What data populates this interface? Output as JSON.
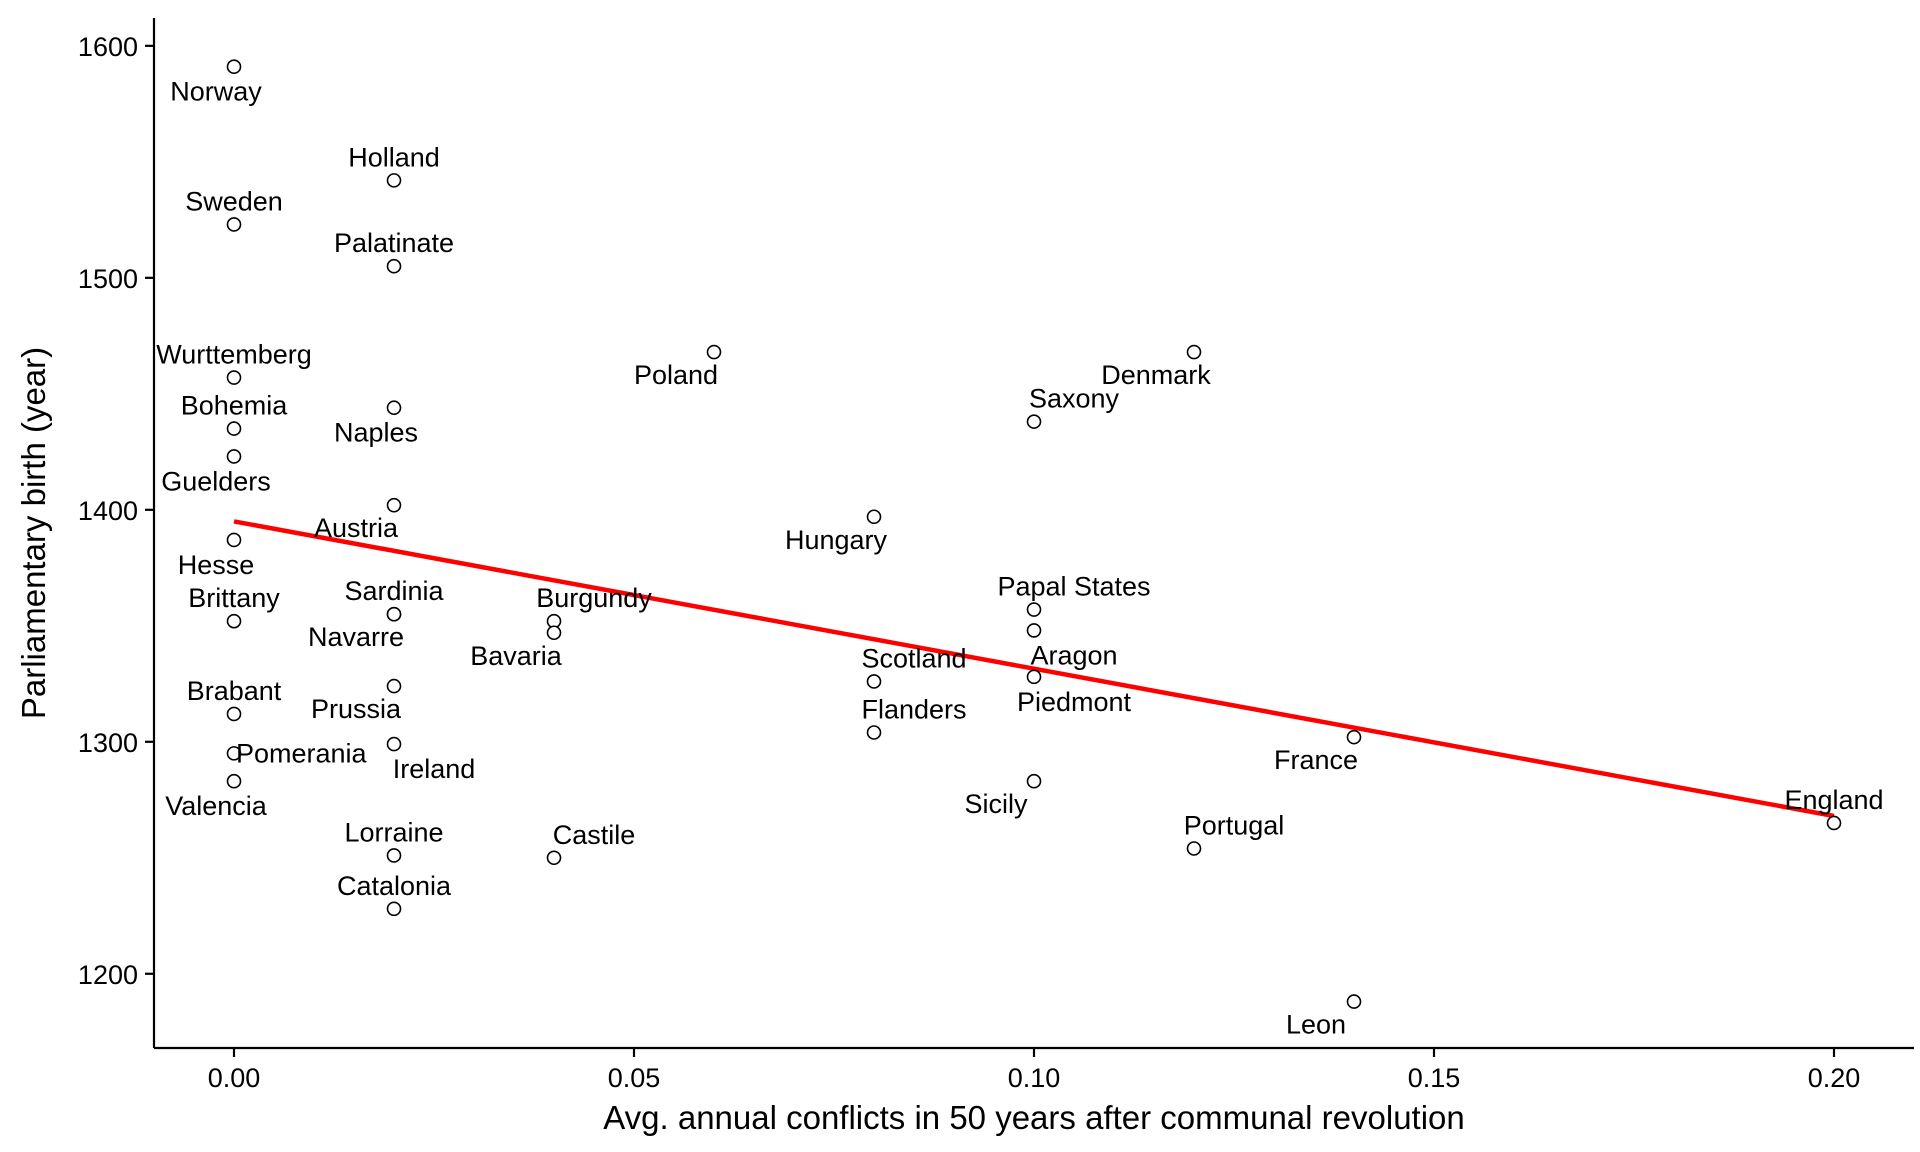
{
  "chart_data": {
    "type": "scatter",
    "title": "",
    "xlabel": "Avg. annual conflicts in 50 years after communal revolution",
    "ylabel": "Parliamentary birth (year)",
    "xlim": [
      -0.01,
      0.21
    ],
    "ylim": [
      1168,
      1612
    ],
    "xticks": [
      0.0,
      0.05,
      0.1,
      0.15,
      0.2
    ],
    "xtick_labels": [
      "0.00",
      "0.05",
      "0.10",
      "0.15",
      "0.20"
    ],
    "yticks": [
      1200,
      1300,
      1400,
      1500,
      1600
    ],
    "ytick_labels": [
      "1200",
      "1300",
      "1400",
      "1500",
      "1600"
    ],
    "grid": false,
    "points": [
      {
        "label": "Norway",
        "x": 0.0,
        "y": 1591,
        "pos": "below"
      },
      {
        "label": "Sweden",
        "x": 0.0,
        "y": 1523,
        "pos": "above"
      },
      {
        "label": "Wurttemberg",
        "x": 0.0,
        "y": 1457,
        "pos": "above"
      },
      {
        "label": "Bohemia",
        "x": 0.0,
        "y": 1435,
        "pos": "above"
      },
      {
        "label": "Guelders",
        "x": 0.0,
        "y": 1423,
        "pos": "below"
      },
      {
        "label": "Hesse",
        "x": 0.0,
        "y": 1387,
        "pos": "below"
      },
      {
        "label": "Brittany",
        "x": 0.0,
        "y": 1352,
        "pos": "above"
      },
      {
        "label": "Brabant",
        "x": 0.0,
        "y": 1312,
        "pos": "above"
      },
      {
        "label": "Pomerania",
        "x": 0.0,
        "y": 1295,
        "pos": "right"
      },
      {
        "label": "Valencia",
        "x": 0.0,
        "y": 1283,
        "pos": "below"
      },
      {
        "label": "Holland",
        "x": 0.02,
        "y": 1542,
        "pos": "above"
      },
      {
        "label": "Palatinate",
        "x": 0.02,
        "y": 1505,
        "pos": "above"
      },
      {
        "label": "Naples",
        "x": 0.02,
        "y": 1444,
        "pos": "below"
      },
      {
        "label": "Austria",
        "x": 0.02,
        "y": 1402,
        "pos": "belowleft"
      },
      {
        "label": "Sardinia",
        "x": 0.02,
        "y": 1355,
        "pos": "above"
      },
      {
        "label": "Navarre",
        "x": 0.02,
        "y": 1355,
        "pos": "belowleft"
      },
      {
        "label": "Prussia",
        "x": 0.02,
        "y": 1324,
        "pos": "belowleft"
      },
      {
        "label": "Ireland",
        "x": 0.02,
        "y": 1299,
        "pos": "belowright"
      },
      {
        "label": "Lorraine",
        "x": 0.02,
        "y": 1251,
        "pos": "above"
      },
      {
        "label": "Catalonia",
        "x": 0.02,
        "y": 1228,
        "pos": "above"
      },
      {
        "label": "Burgundy",
        "x": 0.04,
        "y": 1352,
        "pos": "aboveright"
      },
      {
        "label": "Bavaria",
        "x": 0.04,
        "y": 1347,
        "pos": "belowleft"
      },
      {
        "label": "Castile",
        "x": 0.04,
        "y": 1250,
        "pos": "aboveright"
      },
      {
        "label": "Poland",
        "x": 0.06,
        "y": 1468,
        "pos": "belowleft"
      },
      {
        "label": "Hungary",
        "x": 0.08,
        "y": 1397,
        "pos": "belowleft"
      },
      {
        "label": "Scotland",
        "x": 0.08,
        "y": 1326,
        "pos": "aboveright"
      },
      {
        "label": "Flanders",
        "x": 0.08,
        "y": 1304,
        "pos": "aboveright"
      },
      {
        "label": "Saxony",
        "x": 0.1,
        "y": 1438,
        "pos": "aboveright"
      },
      {
        "label": "Papal States",
        "x": 0.1,
        "y": 1357,
        "pos": "aboveright"
      },
      {
        "label": "Aragon",
        "x": 0.1,
        "y": 1348,
        "pos": "belowright"
      },
      {
        "label": "Piedmont",
        "x": 0.1,
        "y": 1328,
        "pos": "belowright"
      },
      {
        "label": "Sicily",
        "x": 0.1,
        "y": 1283,
        "pos": "belowleft"
      },
      {
        "label": "Denmark",
        "x": 0.12,
        "y": 1468,
        "pos": "belowleft"
      },
      {
        "label": "Portugal",
        "x": 0.12,
        "y": 1254,
        "pos": "aboveright"
      },
      {
        "label": "France",
        "x": 0.14,
        "y": 1302,
        "pos": "belowleft"
      },
      {
        "label": "Leon",
        "x": 0.14,
        "y": 1188,
        "pos": "belowleft"
      },
      {
        "label": "England",
        "x": 0.2,
        "y": 1265,
        "pos": "above"
      }
    ],
    "fit_line": {
      "color": "#ff0000",
      "x": [
        0.0,
        0.2
      ],
      "y": [
        1395,
        1268
      ]
    }
  }
}
